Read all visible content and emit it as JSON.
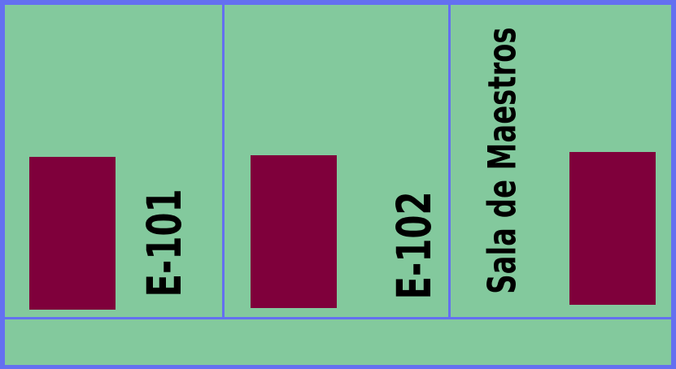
{
  "rooms": [
    {
      "label": "E-101"
    },
    {
      "label": "E-102"
    },
    {
      "label": "Sala de Maestros"
    }
  ],
  "colors": {
    "floor": "#83c99d",
    "wall": "#6470f0",
    "door": "#7f003b",
    "text": "#000000"
  }
}
